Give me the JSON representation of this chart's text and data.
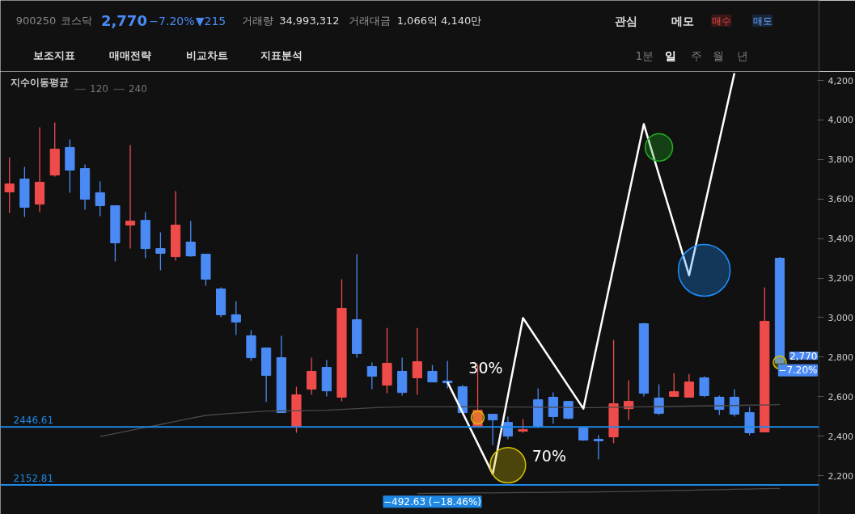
{
  "chart_data": {
    "type": "candlestick",
    "categories": [
      null,
      null,
      null,
      null,
      null,
      null,
      null,
      null,
      null,
      null,
      null,
      null,
      null,
      null,
      null,
      null,
      null,
      null,
      null,
      null,
      null,
      null,
      null,
      null,
      null,
      null,
      null,
      null,
      null,
      null,
      null,
      null,
      null,
      null,
      null,
      null,
      null,
      null,
      null,
      null,
      null,
      null,
      null,
      null,
      null,
      null,
      null,
      null,
      null,
      null,
      null,
      null
    ],
    "ohlc": [
      [
        3636,
        3811,
        3529,
        3676
      ],
      [
        3701,
        3762,
        3509,
        3558
      ],
      [
        3574,
        3963,
        3533,
        3685
      ],
      [
        3721,
        3987,
        3713,
        3852
      ],
      [
        3861,
        3901,
        3632,
        3746
      ],
      [
        3754,
        3775,
        3546,
        3599
      ],
      [
        3632,
        3689,
        3513,
        3566
      ],
      [
        3566,
        3566,
        3284,
        3378
      ],
      [
        3468,
        3873,
        3349,
        3488
      ],
      [
        3492,
        3533,
        3300,
        3349
      ],
      [
        3349,
        3431,
        3239,
        3325
      ],
      [
        3308,
        3640,
        3288,
        3468
      ],
      [
        3382,
        3488,
        3308,
        3312
      ],
      [
        3321,
        3321,
        3161,
        3194
      ],
      [
        3145,
        3153,
        3002,
        3014
      ],
      [
        3014,
        3083,
        2912,
        2977
      ],
      [
        2908,
        2936,
        2781,
        2797
      ],
      [
        2846,
        2846,
        2572,
        2707
      ],
      [
        2797,
        2908,
        2519,
        2519
      ],
      [
        2449,
        2650,
        2417,
        2609
      ],
      [
        2638,
        2797,
        2609,
        2728
      ],
      [
        2748,
        2785,
        2601,
        2629
      ],
      [
        2597,
        3194,
        2576,
        3047
      ],
      [
        2989,
        3321,
        2797,
        2818
      ],
      [
        2752,
        2773,
        2638,
        2703
      ],
      [
        2658,
        2948,
        2617,
        2769
      ],
      [
        2728,
        2797,
        2605,
        2621
      ],
      [
        2695,
        2948,
        2609,
        2777
      ],
      [
        2728,
        2760,
        2674,
        2674
      ],
      [
        2679,
        2781,
        2642,
        2670
      ],
      [
        2650,
        2658,
        2519,
        2519
      ],
      [
        2449,
        2760,
        2449,
        2531
      ],
      [
        2511,
        2511,
        2355,
        2482
      ],
      [
        2470,
        2499,
        2384,
        2400
      ],
      [
        2425,
        2486,
        2417,
        2433
      ],
      [
        2584,
        2642,
        2441,
        2449
      ],
      [
        2597,
        2621,
        2462,
        2499
      ],
      [
        2576,
        2576,
        2486,
        2490
      ],
      [
        2441,
        2441,
        2376,
        2380
      ],
      [
        2384,
        2405,
        2282,
        2376
      ],
      [
        2396,
        2887,
        2364,
        2564
      ],
      [
        2539,
        2683,
        2482,
        2576
      ],
      [
        2969,
        2973,
        2601,
        2617
      ],
      [
        2593,
        2662,
        2507,
        2515
      ],
      [
        2601,
        2719,
        2601,
        2625
      ],
      [
        2597,
        2715,
        2597,
        2674
      ],
      [
        2695,
        2703,
        2597,
        2605
      ],
      [
        2597,
        2605,
        2507,
        2535
      ],
      [
        2597,
        2638,
        2499,
        2511
      ],
      [
        2519,
        2548,
        2405,
        2417
      ],
      [
        2421,
        3153,
        2421,
        2981
      ],
      [
        3300,
        3305,
        2770,
        2770
      ]
    ],
    "series": [
      {
        "name": "120",
        "type": "line",
        "color": "#4a4a4a",
        "values": [
          null,
          null,
          null,
          null,
          null,
          null,
          2398,
          2413,
          2429,
          2444,
          2459,
          2475,
          2490,
          2505,
          2512,
          2517,
          2522,
          2527,
          2528,
          2529,
          2530,
          2531,
          2535,
          2539,
          2543,
          2546,
          2548,
          2548,
          2548,
          2548,
          2548,
          2548,
          2548,
          2547,
          2547,
          2546,
          2546,
          2545,
          2544,
          2544,
          2546,
          2547,
          2548,
          2549,
          2550,
          2552,
          2553,
          2554,
          2555,
          2557,
          2558,
          2560
        ]
      },
      {
        "name": "240",
        "type": "line",
        "color": "#4a4a4a",
        "values": [
          null,
          null,
          null,
          null,
          null,
          null,
          null,
          null,
          null,
          null,
          null,
          null,
          null,
          null,
          null,
          null,
          null,
          null,
          null,
          null,
          null,
          null,
          null,
          null,
          null,
          null,
          null,
          2110,
          2111,
          2111,
          2112,
          2113,
          2113,
          2114,
          2115,
          2115,
          2116,
          2117,
          2117,
          2118,
          2119,
          2120,
          2122,
          2123,
          2125,
          2126,
          2128,
          2129,
          2131,
          2132,
          2134,
          2135
        ]
      },
      {
        "type": "line",
        "color": "#ffffff",
        "values": [
          null,
          null,
          null,
          null,
          null,
          null,
          null,
          null,
          null,
          null,
          null,
          null,
          null,
          null,
          null,
          null,
          null,
          null,
          null,
          null,
          null,
          null,
          null,
          null,
          null,
          null,
          null,
          null,
          null,
          2674,
          null,
          null,
          2208,
          null,
          2998,
          null,
          null,
          null,
          2539,
          null,
          null,
          null,
          3979,
          null,
          null,
          3214,
          null,
          null,
          4237,
          null,
          null,
          null
        ]
      },
      {
        "type": "bubble",
        "values": [
          null,
          null,
          null,
          null,
          null,
          null,
          null,
          null,
          null,
          null,
          null,
          null,
          null,
          null,
          null,
          null,
          null,
          null,
          null,
          null,
          null,
          null,
          null,
          null,
          null,
          null,
          null,
          null,
          null,
          null,
          null,
          2494,
          null,
          2253,
          null,
          null,
          null,
          null,
          null,
          null,
          null,
          null,
          null,
          3861,
          null,
          null,
          3239,
          null,
          null,
          null,
          null,
          2773
        ],
        "sizes": [
          null,
          null,
          null,
          null,
          null,
          null,
          null,
          null,
          null,
          null,
          null,
          null,
          null,
          null,
          null,
          null,
          null,
          null,
          null,
          null,
          null,
          null,
          null,
          null,
          null,
          null,
          null,
          null,
          null,
          null,
          null,
          0.0625,
          null,
          0.47,
          null,
          null,
          null,
          null,
          null,
          null,
          null,
          null,
          null,
          0.28,
          null,
          null,
          1,
          null,
          null,
          null,
          null,
          0.0625
        ],
        "colors": [
          null,
          null,
          null,
          null,
          null,
          null,
          null,
          null,
          null,
          null,
          null,
          null,
          null,
          null,
          null,
          null,
          null,
          null,
          null,
          null,
          null,
          null,
          null,
          null,
          null,
          null,
          null,
          null,
          null,
          null,
          null,
          "#d4c000",
          null,
          "#d4c000",
          null,
          null,
          null,
          null,
          null,
          null,
          null,
          null,
          null,
          "#22b022",
          null,
          null,
          "#1e90ff",
          null,
          null,
          null,
          null,
          "#d4c000"
        ]
      }
    ],
    "legend_title": "지수이동평균",
    "legend": "top left",
    "ylim": [
      2004,
      4245
    ],
    "yticks": [
      {
        "value": 2200,
        "label": "2,200"
      },
      {
        "value": 2400,
        "label": "2,400"
      },
      {
        "value": 2600,
        "label": "2,600"
      },
      {
        "value": 2800,
        "label": "2,800"
      },
      {
        "value": 3000,
        "label": "3,000"
      },
      {
        "value": 3200,
        "label": "3,200"
      },
      {
        "value": 3400,
        "label": "3,400"
      },
      {
        "value": 3600,
        "label": "3,600"
      },
      {
        "value": 3800,
        "label": "3,800"
      },
      {
        "value": 4000,
        "label": "4,000"
      },
      {
        "value": 4200,
        "label": "4,200"
      }
    ],
    "tick_labels": "y",
    "ref_lines": [
      {
        "axis": "y",
        "value": 2446.61,
        "label": "2446.61",
        "color": "#1e88e5"
      },
      {
        "axis": "y",
        "value": 2152.81,
        "label": "2152.81",
        "color": "#1e88e5"
      }
    ],
    "annotations": [
      "900250",
      "코스닥",
      "2,770",
      "−7.20%",
      "▼215",
      "거래량",
      "34,993,312",
      "거래대금",
      "1,066억 4,140만",
      "관심",
      "메모",
      "매수",
      "매도",
      "보조지표",
      "매매전략",
      "비교차트",
      "지표분석",
      "1분",
      "일",
      "주",
      "월",
      "년",
      "30%",
      "70%",
      "−492.63 (−18.46%)",
      "2,770",
      "−7.20%"
    ]
  }
}
